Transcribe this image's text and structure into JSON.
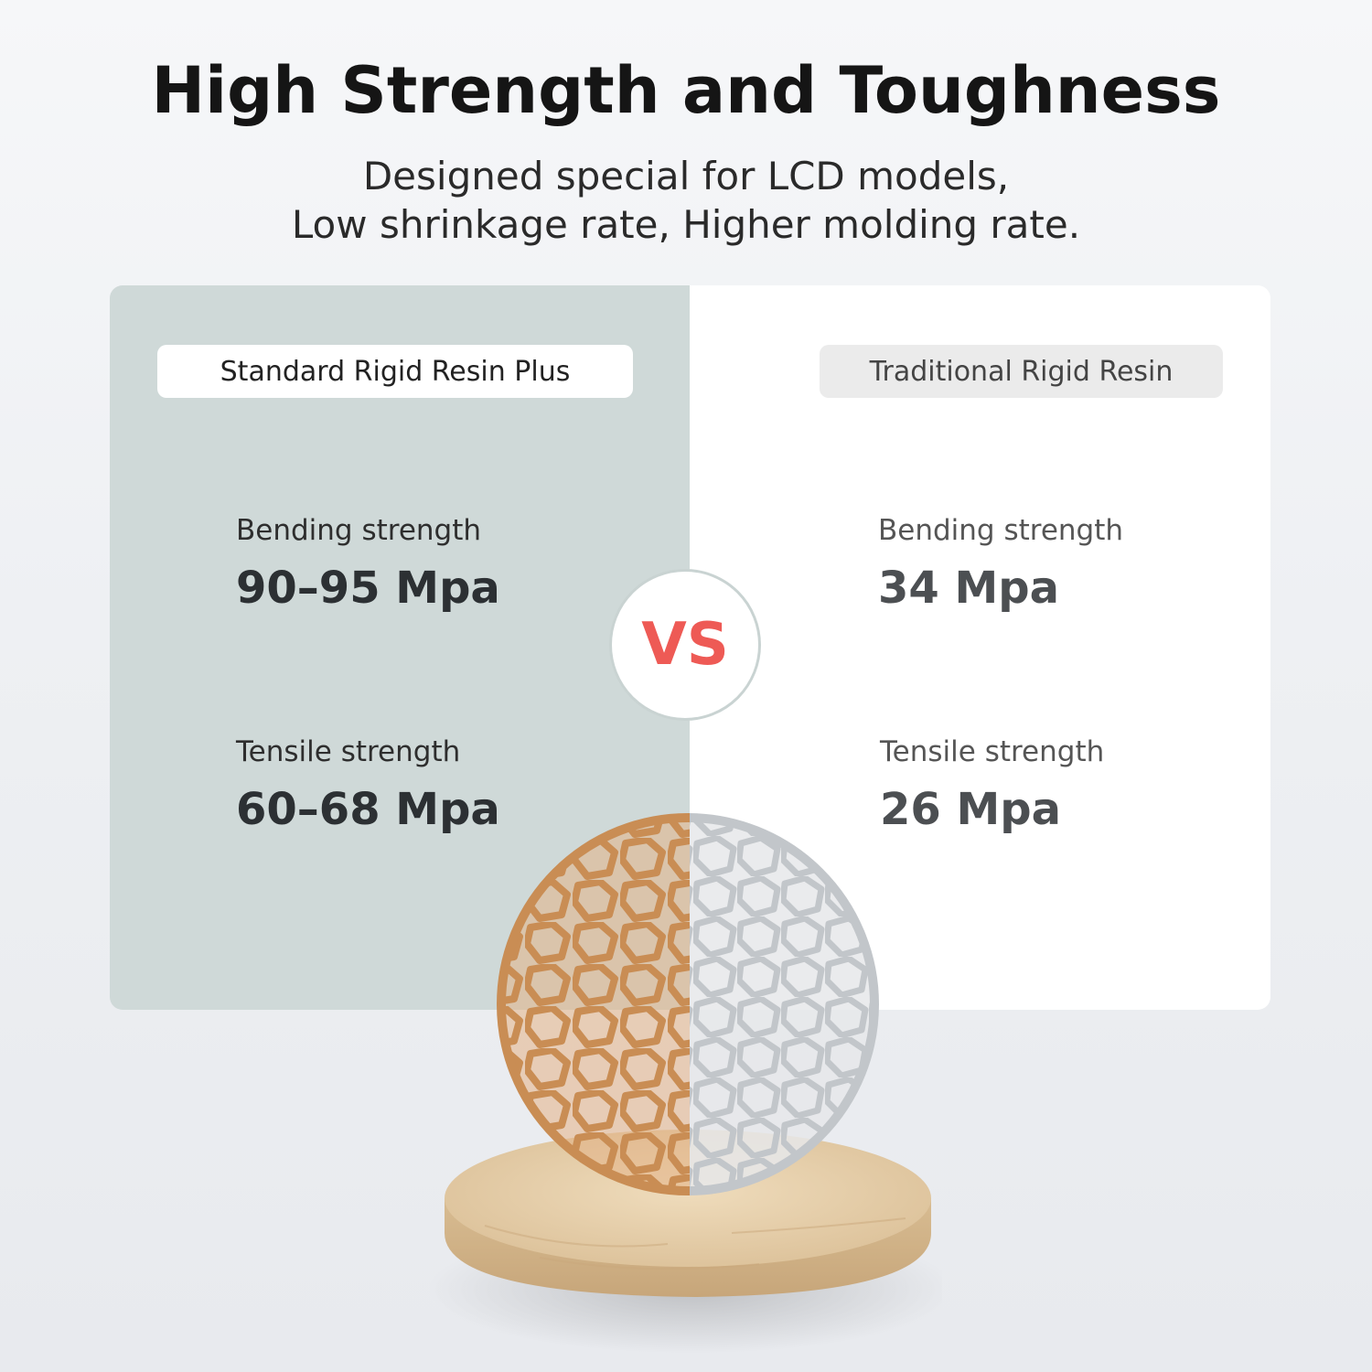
{
  "header": {
    "title": "High Strength and Toughness",
    "subtitle_line1": "Designed special for LCD models,",
    "subtitle_line2": "Low shrinkage rate, Higher molding rate."
  },
  "left": {
    "name": "Standard Rigid Resin Plus",
    "bending_label": "Bending strength",
    "bending_value": "90–95 Mpa",
    "tensile_label": "Tensile strength",
    "tensile_value": "60–68 Mpa"
  },
  "right": {
    "name": "Traditional Rigid Resin",
    "bending_label": "Bending strength",
    "bending_value": "34 Mpa",
    "tensile_label": "Tensile strength",
    "tensile_value": "26 Mpa"
  },
  "vs_badge": "VS",
  "colors": {
    "left_panel": "#cfd9d8",
    "right_panel": "#ffffff",
    "vs_text": "#ee5a55",
    "resin_plus": "#d9a878",
    "resin_traditional": "#d4d7da",
    "wood_base": "#e2c8a2"
  }
}
